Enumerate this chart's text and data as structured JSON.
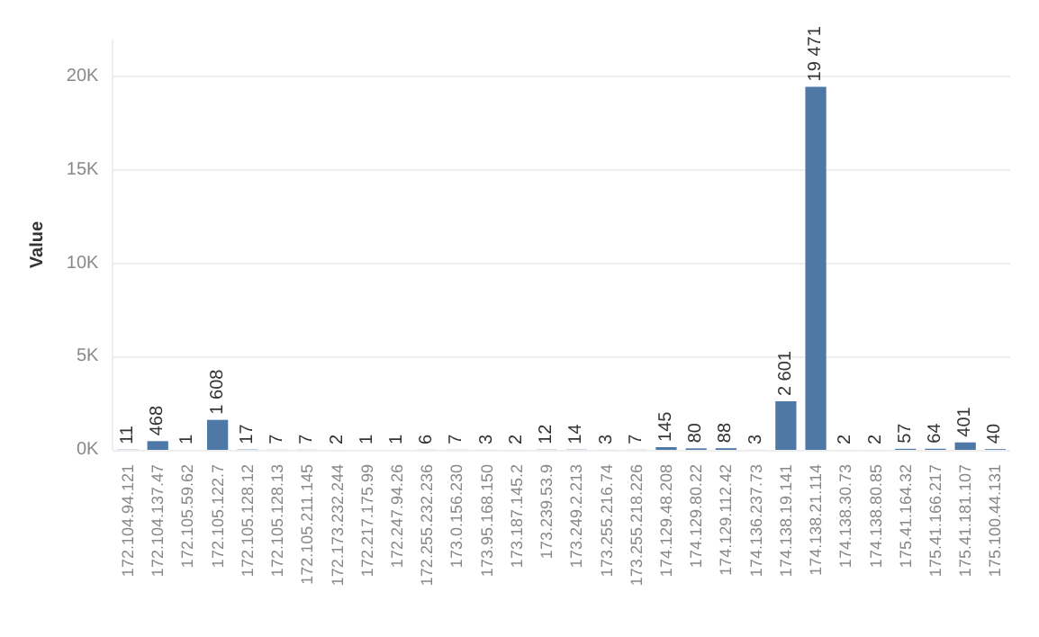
{
  "chart_data": {
    "type": "bar",
    "ylabel": "Value",
    "categories": [
      "172.104.94.121",
      "172.104.137.47",
      "172.105.59.62",
      "172.105.122.7",
      "172.105.128.12",
      "172.105.128.13",
      "172.105.211.145",
      "172.173.232.244",
      "172.217.175.99",
      "172.247.94.26",
      "172.255.232.236",
      "173.0.156.230",
      "173.95.168.150",
      "173.187.145.2",
      "173.239.53.9",
      "173.249.2.213",
      "173.255.216.74",
      "173.255.218.226",
      "174.129.48.208",
      "174.129.80.22",
      "174.129.112.42",
      "174.136.237.73",
      "174.138.19.141",
      "174.138.21.114",
      "174.138.30.73",
      "174.138.80.85",
      "175.41.164.32",
      "175.41.166.217",
      "175.41.181.107",
      "175.100.44.131"
    ],
    "values": [
      11,
      468,
      1,
      1608,
      17,
      7,
      7,
      2,
      1,
      1,
      6,
      7,
      3,
      2,
      12,
      14,
      3,
      7,
      145,
      80,
      88,
      3,
      2601,
      19471,
      2,
      2,
      57,
      64,
      401,
      40
    ],
    "value_labels": [
      "11",
      "468",
      "1",
      "1 608",
      "17",
      "7",
      "7",
      "2",
      "1",
      "1",
      "6",
      "7",
      "3",
      "2",
      "12",
      "14",
      "3",
      "7",
      "145",
      "80",
      "88",
      "3",
      "2 601",
      "19 471",
      "2",
      "2",
      "57",
      "64",
      "401",
      "40"
    ],
    "color": "#4e79a7",
    "ylim": [
      0,
      22000
    ],
    "yticks": [
      {
        "value": 0,
        "label": "0K"
      },
      {
        "value": 5000,
        "label": "5K"
      },
      {
        "value": 10000,
        "label": "10K"
      },
      {
        "value": 15000,
        "label": "15K"
      },
      {
        "value": 20000,
        "label": "20K"
      }
    ],
    "grid": "y"
  }
}
